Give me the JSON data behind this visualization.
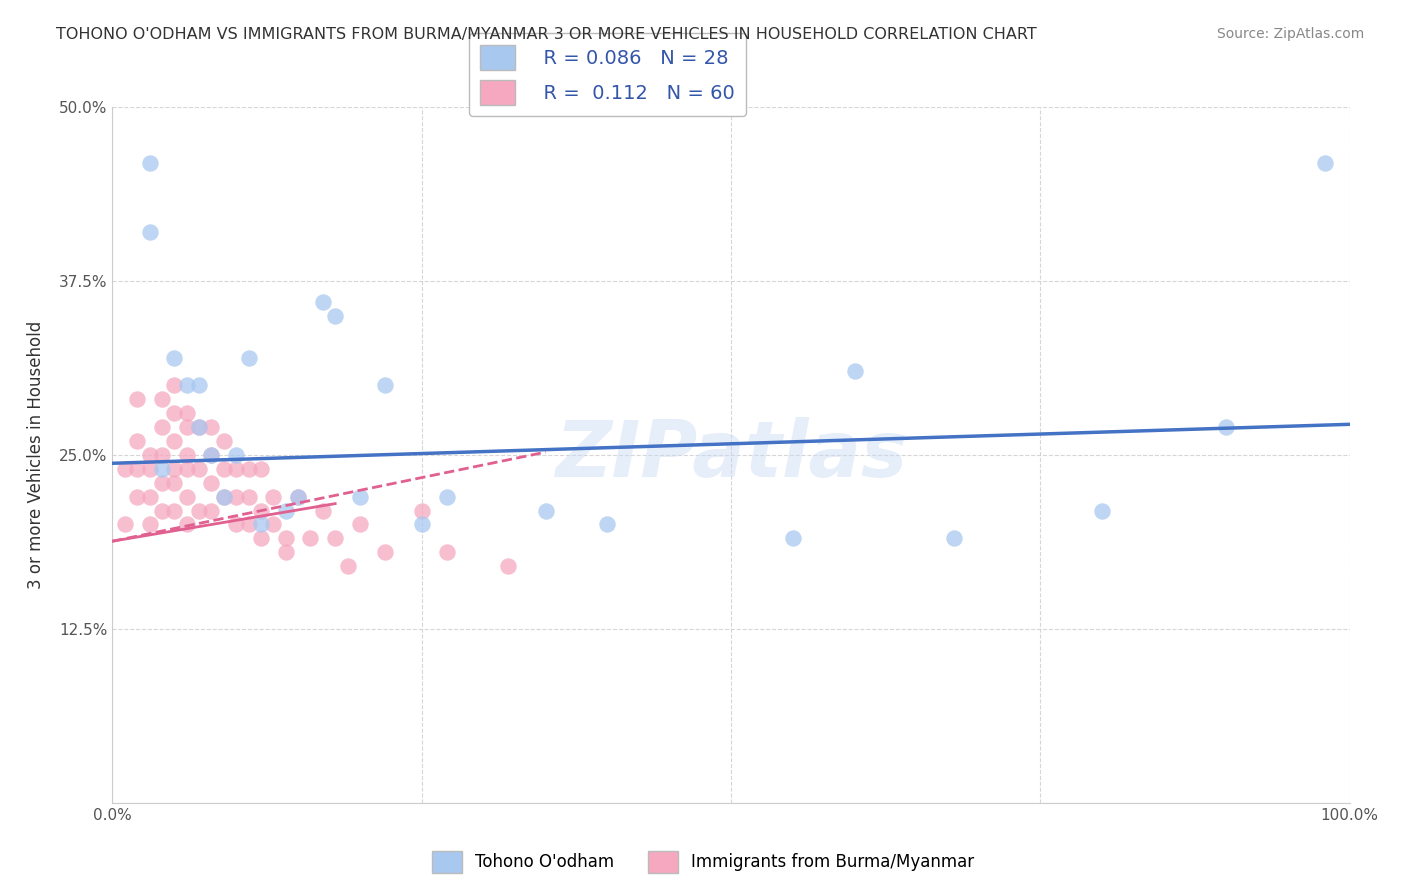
{
  "title": "TOHONO O'ODHAM VS IMMIGRANTS FROM BURMA/MYANMAR 3 OR MORE VEHICLES IN HOUSEHOLD CORRELATION CHART",
  "source": "Source: ZipAtlas.com",
  "ylabel": "3 or more Vehicles in Household",
  "xlim": [
    0,
    1.0
  ],
  "ylim": [
    0,
    0.5
  ],
  "xticks": [
    0.0,
    0.25,
    0.5,
    0.75,
    1.0
  ],
  "xticklabels": [
    "0.0%",
    "",
    "",
    "",
    "100.0%"
  ],
  "yticks": [
    0.0,
    0.125,
    0.25,
    0.375,
    0.5
  ],
  "yticklabels": [
    "",
    "12.5%",
    "25.0%",
    "37.5%",
    "50.0%"
  ],
  "legend_R1": "R = 0.086",
  "legend_N1": "N = 28",
  "legend_R2": "R =  0.112",
  "legend_N2": "N = 60",
  "color_blue": "#a8c8f0",
  "color_pink": "#f5a8c0",
  "trendline1_color": "#4472c4",
  "trendline2_color": "#e06090",
  "watermark": "ZIPatlas",
  "blue_scatter_x": [
    0.03,
    0.03,
    0.04,
    0.05,
    0.06,
    0.07,
    0.07,
    0.08,
    0.09,
    0.1,
    0.11,
    0.12,
    0.14,
    0.15,
    0.17,
    0.18,
    0.2,
    0.22,
    0.25,
    0.27,
    0.35,
    0.4,
    0.55,
    0.6,
    0.68,
    0.8,
    0.9,
    0.98
  ],
  "blue_scatter_y": [
    0.46,
    0.41,
    0.24,
    0.32,
    0.3,
    0.3,
    0.27,
    0.25,
    0.22,
    0.25,
    0.32,
    0.2,
    0.21,
    0.22,
    0.36,
    0.35,
    0.22,
    0.3,
    0.2,
    0.22,
    0.21,
    0.2,
    0.19,
    0.31,
    0.19,
    0.21,
    0.27,
    0.46
  ],
  "pink_scatter_x": [
    0.01,
    0.01,
    0.02,
    0.02,
    0.02,
    0.02,
    0.03,
    0.03,
    0.03,
    0.03,
    0.04,
    0.04,
    0.04,
    0.04,
    0.04,
    0.05,
    0.05,
    0.05,
    0.05,
    0.05,
    0.05,
    0.06,
    0.06,
    0.06,
    0.06,
    0.06,
    0.06,
    0.07,
    0.07,
    0.07,
    0.08,
    0.08,
    0.08,
    0.08,
    0.09,
    0.09,
    0.09,
    0.1,
    0.1,
    0.1,
    0.11,
    0.11,
    0.11,
    0.12,
    0.12,
    0.12,
    0.13,
    0.13,
    0.14,
    0.14,
    0.15,
    0.16,
    0.17,
    0.18,
    0.19,
    0.2,
    0.22,
    0.25,
    0.27,
    0.32
  ],
  "pink_scatter_y": [
    0.24,
    0.2,
    0.29,
    0.26,
    0.24,
    0.22,
    0.25,
    0.24,
    0.22,
    0.2,
    0.29,
    0.27,
    0.25,
    0.23,
    0.21,
    0.3,
    0.28,
    0.26,
    0.24,
    0.23,
    0.21,
    0.28,
    0.27,
    0.25,
    0.24,
    0.22,
    0.2,
    0.27,
    0.24,
    0.21,
    0.27,
    0.25,
    0.23,
    0.21,
    0.26,
    0.24,
    0.22,
    0.24,
    0.22,
    0.2,
    0.24,
    0.22,
    0.2,
    0.24,
    0.21,
    0.19,
    0.22,
    0.2,
    0.19,
    0.18,
    0.22,
    0.19,
    0.21,
    0.19,
    0.17,
    0.2,
    0.18,
    0.21,
    0.18,
    0.17
  ],
  "blue_trend_x": [
    0.0,
    1.0
  ],
  "blue_trend_y": [
    0.244,
    0.272
  ],
  "pink_trend_x": [
    0.0,
    0.35
  ],
  "pink_trend_y": [
    0.188,
    0.252
  ]
}
